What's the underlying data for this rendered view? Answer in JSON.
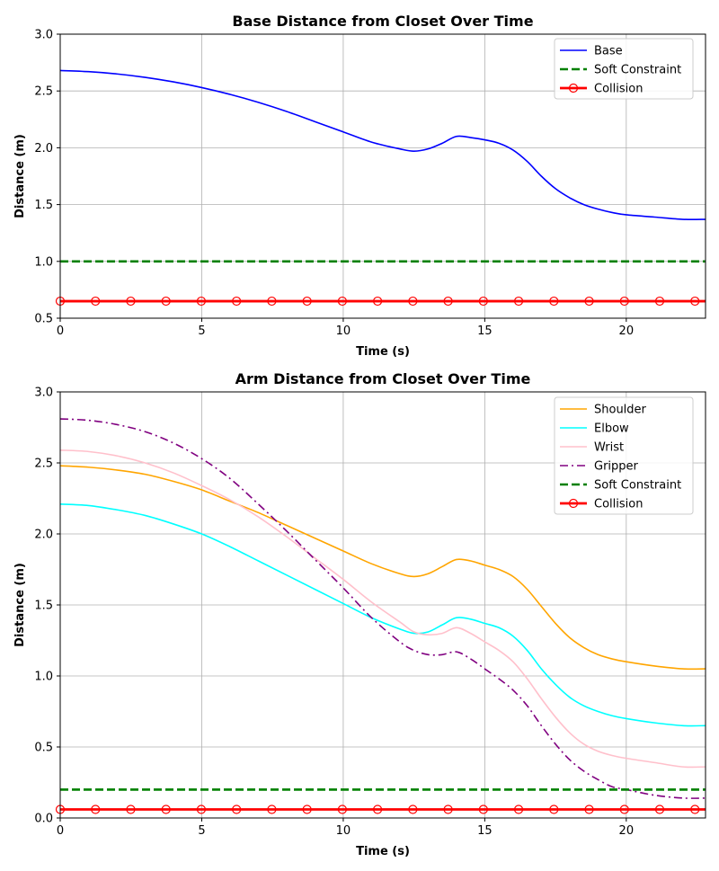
{
  "chart_data": [
    {
      "type": "line",
      "title": "Base Distance from Closet Over Time",
      "xlabel": "Time (s)",
      "ylabel": "Distance (m)",
      "xlim": [
        0,
        22.8
      ],
      "ylim": [
        0.5,
        3.0
      ],
      "xticks": [
        0,
        5,
        10,
        15,
        20
      ],
      "yticks": [
        0.5,
        1.0,
        1.5,
        2.0,
        2.5,
        3.0
      ],
      "grid": true,
      "legend_position": "top-right",
      "series": [
        {
          "name": "Base",
          "color": "#0000ff",
          "style": "solid",
          "x": [
            0,
            1,
            2,
            3,
            4,
            5,
            6,
            7,
            8,
            9,
            10,
            11,
            12,
            12.5,
            13,
            13.5,
            14,
            14.5,
            15,
            15.5,
            16,
            16.5,
            17,
            17.5,
            18,
            18.5,
            19,
            19.5,
            20,
            21,
            22,
            22.8
          ],
          "y": [
            2.68,
            2.67,
            2.65,
            2.62,
            2.58,
            2.53,
            2.47,
            2.4,
            2.32,
            2.23,
            2.14,
            2.05,
            1.99,
            1.97,
            1.99,
            2.04,
            2.1,
            2.09,
            2.07,
            2.04,
            1.98,
            1.88,
            1.75,
            1.64,
            1.56,
            1.5,
            1.46,
            1.43,
            1.41,
            1.39,
            1.37,
            1.37
          ]
        },
        {
          "name": "Soft Constraint",
          "color": "#008000",
          "style": "dashed",
          "x": [
            0,
            22.8
          ],
          "y": [
            1.0,
            1.0
          ]
        },
        {
          "name": "Collision",
          "color": "#ff0000",
          "style": "solid-markers",
          "x": [
            0,
            22.8
          ],
          "y": [
            0.65,
            0.65
          ]
        }
      ]
    },
    {
      "type": "line",
      "title": "Arm Distance from Closet Over Time",
      "xlabel": "Time (s)",
      "ylabel": "Distance (m)",
      "xlim": [
        0,
        22.8
      ],
      "ylim": [
        0.0,
        3.0
      ],
      "xticks": [
        0,
        5,
        10,
        15,
        20
      ],
      "yticks": [
        0.0,
        0.5,
        1.0,
        1.5,
        2.0,
        2.5,
        3.0
      ],
      "grid": true,
      "legend_position": "top-right",
      "series": [
        {
          "name": "Shoulder",
          "color": "#ffa500",
          "style": "solid",
          "x": [
            0,
            1,
            2,
            3,
            4,
            5,
            6,
            7,
            8,
            9,
            10,
            11,
            12,
            12.5,
            13,
            13.5,
            14,
            14.5,
            15,
            15.5,
            16,
            16.5,
            17,
            17.5,
            18,
            18.5,
            19,
            19.5,
            20,
            21,
            22,
            22.8
          ],
          "y": [
            2.48,
            2.47,
            2.45,
            2.42,
            2.37,
            2.31,
            2.23,
            2.15,
            2.06,
            1.97,
            1.88,
            1.79,
            1.72,
            1.7,
            1.72,
            1.77,
            1.82,
            1.81,
            1.78,
            1.75,
            1.7,
            1.61,
            1.49,
            1.37,
            1.27,
            1.2,
            1.15,
            1.12,
            1.1,
            1.07,
            1.05,
            1.05
          ]
        },
        {
          "name": "Elbow",
          "color": "#00ffff",
          "style": "solid",
          "x": [
            0,
            1,
            2,
            3,
            4,
            5,
            6,
            7,
            8,
            9,
            10,
            11,
            12,
            12.5,
            13,
            13.5,
            14,
            14.5,
            15,
            15.5,
            16,
            16.5,
            17,
            17.5,
            18,
            18.5,
            19,
            19.5,
            20,
            21,
            22,
            22.8
          ],
          "y": [
            2.21,
            2.2,
            2.17,
            2.13,
            2.07,
            2.0,
            1.91,
            1.81,
            1.71,
            1.61,
            1.51,
            1.41,
            1.33,
            1.3,
            1.31,
            1.36,
            1.41,
            1.4,
            1.37,
            1.34,
            1.28,
            1.18,
            1.05,
            0.94,
            0.85,
            0.79,
            0.75,
            0.72,
            0.7,
            0.67,
            0.65,
            0.65
          ]
        },
        {
          "name": "Wrist",
          "color": "#ffc0cb",
          "style": "solid",
          "x": [
            0,
            1,
            2,
            3,
            4,
            5,
            6,
            7,
            8,
            9,
            10,
            11,
            12,
            12.5,
            13,
            13.5,
            14,
            14.5,
            15,
            15.5,
            16,
            16.5,
            17,
            17.5,
            18,
            18.5,
            19,
            19.5,
            20,
            21,
            22,
            22.8
          ],
          "y": [
            2.59,
            2.58,
            2.55,
            2.5,
            2.43,
            2.34,
            2.24,
            2.12,
            1.98,
            1.83,
            1.68,
            1.52,
            1.38,
            1.31,
            1.29,
            1.3,
            1.34,
            1.3,
            1.24,
            1.18,
            1.1,
            0.98,
            0.84,
            0.71,
            0.6,
            0.52,
            0.47,
            0.44,
            0.42,
            0.39,
            0.36,
            0.36
          ]
        },
        {
          "name": "Gripper",
          "color": "#800080",
          "style": "dashdot",
          "x": [
            0,
            1,
            2,
            3,
            4,
            5,
            6,
            7,
            8,
            9,
            10,
            11,
            12,
            12.5,
            13,
            13.5,
            14,
            14.5,
            15,
            15.5,
            16,
            16.5,
            17,
            17.5,
            18,
            18.5,
            19,
            19.5,
            20,
            21,
            22,
            22.8
          ],
          "y": [
            2.81,
            2.8,
            2.77,
            2.72,
            2.64,
            2.53,
            2.39,
            2.21,
            2.02,
            1.82,
            1.62,
            1.41,
            1.24,
            1.18,
            1.15,
            1.15,
            1.17,
            1.12,
            1.05,
            0.98,
            0.9,
            0.79,
            0.65,
            0.52,
            0.41,
            0.33,
            0.27,
            0.22,
            0.2,
            0.16,
            0.14,
            0.14
          ]
        },
        {
          "name": "Soft Constraint",
          "color": "#008000",
          "style": "dashed",
          "x": [
            0,
            22.8
          ],
          "y": [
            0.2,
            0.2
          ]
        },
        {
          "name": "Collision",
          "color": "#ff0000",
          "style": "solid-markers",
          "x": [
            0,
            22.8
          ],
          "y": [
            0.06,
            0.06
          ]
        }
      ]
    }
  ]
}
